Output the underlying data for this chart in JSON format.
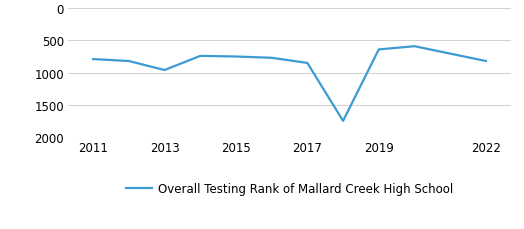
{
  "x": [
    2011,
    2012,
    2013,
    2014,
    2015,
    2016,
    2017,
    2018,
    2019,
    2020,
    2022
  ],
  "y": [
    790,
    820,
    960,
    740,
    750,
    770,
    850,
    1750,
    640,
    590,
    820
  ],
  "line_color": "#3d9bd4",
  "line_width": 1.6,
  "ylim": [
    2000,
    0
  ],
  "yticks": [
    0,
    500,
    1000,
    1500,
    2000
  ],
  "xticks": [
    2011,
    2013,
    2015,
    2017,
    2019,
    2022
  ],
  "legend_label": "Overall Testing Rank of Mallard Creek High School",
  "grid_color": "#d0d0d0",
  "background_color": "#ffffff",
  "tick_fontsize": 8.5,
  "legend_fontsize": 8.5
}
